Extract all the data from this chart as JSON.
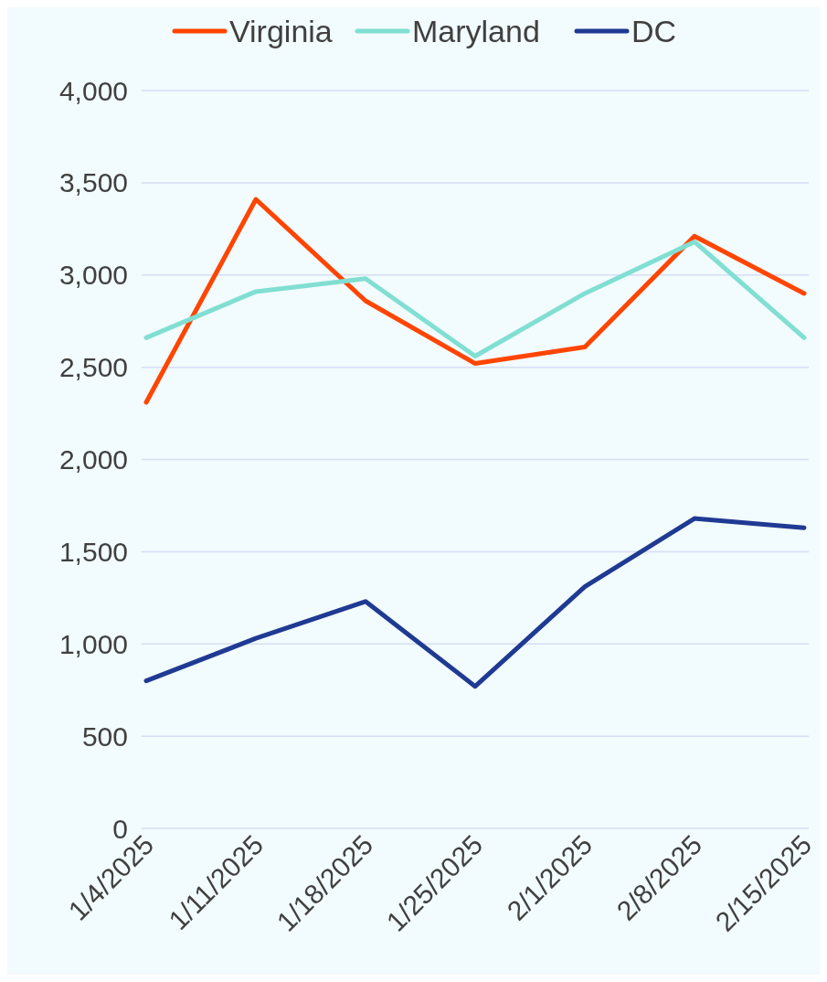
{
  "chart_data": {
    "type": "line",
    "categories": [
      "1/4/2025",
      "1/11/2025",
      "1/18/2025",
      "1/25/2025",
      "2/1/2025",
      "2/8/2025",
      "2/15/2025"
    ],
    "series": [
      {
        "name": "Virginia",
        "color": "#ff4500",
        "values": [
          2310,
          3410,
          2860,
          2520,
          2610,
          3210,
          2900
        ]
      },
      {
        "name": "Maryland",
        "color": "#80dfd2",
        "values": [
          2660,
          2910,
          2980,
          2560,
          2900,
          3180,
          2660
        ]
      },
      {
        "name": "DC",
        "color": "#1f3a93",
        "values": [
          800,
          1030,
          1230,
          770,
          1310,
          1680,
          1630
        ]
      }
    ],
    "ylim": [
      0,
      4000
    ],
    "yticks": [
      0,
      500,
      {
        "value": 1000,
        "label": "1,000"
      },
      {
        "value": 1500,
        "label": "1,500"
      },
      {
        "value": 2000,
        "label": "2,000"
      },
      {
        "value": 2500,
        "label": "2,500"
      },
      {
        "value": 3000,
        "label": "3,000"
      },
      {
        "value": 3500,
        "label": "3,500"
      },
      {
        "value": 4000,
        "label": "4,000"
      }
    ],
    "grid": "y",
    "legend": "top",
    "line_style": "solid",
    "marker": "none"
  }
}
